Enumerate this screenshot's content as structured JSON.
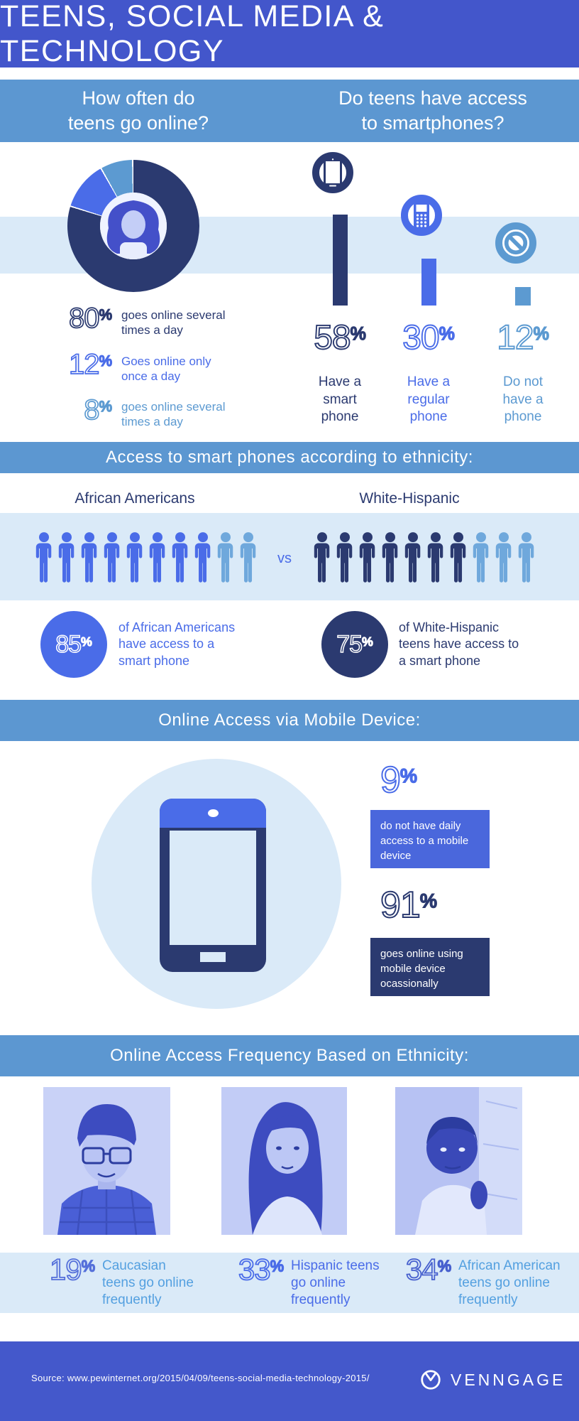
{
  "colors": {
    "header_bg": "#4356CB",
    "banner_bg": "#5C97D1",
    "light_band": "#DAEAF8",
    "navy": "#2B3A70",
    "blue": "#4A6CE8",
    "sky": "#5C9AD1",
    "box_blue": "#4A67DC",
    "footer_bg": "#4458CB",
    "white": "#FFFFFF"
  },
  "header": {
    "title": "TEENS, SOCIAL MEDIA & TECHNOLOGY"
  },
  "questions": {
    "q1": "How often do\nteens go online?",
    "q2": "Do teens have access\nto smartphones?"
  },
  "online_frequency": {
    "stats": [
      {
        "value": "80",
        "unit": "%",
        "label": "goes online several\ntimes a day",
        "color": "#2B3A70"
      },
      {
        "value": "12",
        "unit": "%",
        "label": "Goes online only\nonce a day",
        "color": "#4A6CE8"
      },
      {
        "value": "8",
        "unit": "%",
        "label": "goes online several\ntimes a day",
        "color": "#5C9AD1"
      }
    ]
  },
  "smartphone_access": {
    "items": [
      {
        "value": "58",
        "unit": "%",
        "label": "Have a\nsmart\nphone",
        "icon": "smartphone-icon",
        "color": "#2B3A70",
        "bar": 58
      },
      {
        "value": "30",
        "unit": "%",
        "label": "Have a\nregular\nphone",
        "icon": "feature-phone-icon",
        "color": "#4A6CE8",
        "bar": 30
      },
      {
        "value": "12",
        "unit": "%",
        "label": "Do not\nhave a\nphone",
        "icon": "no-phone-icon",
        "color": "#5C9AD1",
        "bar": 12
      }
    ]
  },
  "ethnicity_access": {
    "banner": "Access to smart phones according to ethnicity:",
    "vs": "vs",
    "group1": {
      "label": "African Americans",
      "label_color": "#4A6CE8"
    },
    "group2": {
      "label": "White-Hispanic",
      "label_color": "#2B3A70"
    },
    "stat1": {
      "value": "85",
      "unit": "%",
      "number_color": "#FFFFFF",
      "label": "of African Americans\nhave access to a\nsmart phone",
      "label_color": "#4A6CE8"
    },
    "stat2": {
      "value": "75",
      "unit": "%",
      "number_color": "#FFFFFF",
      "label": "of White-Hispanic\nteens have access to\na smart phone",
      "label_color": "#2B3A70"
    }
  },
  "mobile_access": {
    "banner": "Online Access via Mobile Device:",
    "stat1": {
      "value": "9",
      "unit": "%",
      "number_color": "#4A6CE8",
      "box": "do not have daily\naccess to a mobile\ndevice"
    },
    "stat2": {
      "value": "91",
      "unit": "%",
      "number_color": "#2B3A70",
      "box": "goes online using\nmobile device\nocassionally"
    }
  },
  "frequency_by_ethnicity": {
    "banner": "Online Access Frequency Based on Ethnicity:",
    "stats": [
      {
        "value": "19",
        "unit": "%",
        "number_color": "#5570DA",
        "label": "Caucasian\nteens go online\nfrequently",
        "label_color": "#54A0E0"
      },
      {
        "value": "33",
        "unit": "%",
        "number_color": "#4A6CE8",
        "label": "Hispanic teens\ngo online\nfrequently",
        "label_color": "#4A6CE8"
      },
      {
        "value": "34",
        "unit": "%",
        "number_color": "#4760CE",
        "label": "African American\nteens go online\nfrequently",
        "label_color": "#54A0E0"
      }
    ]
  },
  "footer": {
    "source": "Source: www.pewinternet.org/2015/04/09/teens-social-media-technology-2015/",
    "brand": "VENNGAGE"
  },
  "chart_data": [
    {
      "type": "pie",
      "title": "How often do teens go online?",
      "labels": [
        "goes online several times a day",
        "Goes online only once a day",
        "goes online several times a day"
      ],
      "values": [
        80,
        12,
        8
      ],
      "colors": [
        "#2B3A70",
        "#4A6CE8",
        "#5C9AD1"
      ],
      "donut": true,
      "start_angle_deg": 0,
      "direction": "clockwise"
    },
    {
      "type": "bar",
      "title": "Do teens have access to smartphones?",
      "categories": [
        "Have a smart phone",
        "Have a regular phone",
        "Do not have a phone"
      ],
      "values": [
        58,
        30,
        12
      ],
      "colors": [
        "#2B3A70",
        "#4A6CE8",
        "#5C9AD1"
      ],
      "ylim": [
        0,
        60
      ]
    },
    {
      "type": "pictograph",
      "title": "Access to smart phones according to ethnicity",
      "series": [
        {
          "name": "African Americans",
          "value": 85,
          "filled_icons": 8,
          "total_icons": 10,
          "filled_color": "#4A6CE8",
          "rest_color": "#6FA8DC"
        },
        {
          "name": "White-Hispanic",
          "value": 75,
          "filled_icons": 7,
          "total_icons": 10,
          "filled_color": "#2B3A70",
          "rest_color": "#6FA8DC"
        }
      ]
    },
    {
      "type": "bar",
      "title": "Online Access via Mobile Device",
      "categories": [
        "do not have daily access to a mobile device",
        "goes online using mobile device ocassionally"
      ],
      "values": [
        9,
        91
      ],
      "colors": [
        "#4A67DC",
        "#2B3A70"
      ]
    },
    {
      "type": "bar",
      "title": "Online Access Frequency Based on Ethnicity",
      "categories": [
        "Caucasian",
        "Hispanic",
        "African American"
      ],
      "values": [
        19,
        33,
        34
      ],
      "colors": [
        "#5570DA",
        "#4A6CE8",
        "#4760CE"
      ]
    }
  ]
}
